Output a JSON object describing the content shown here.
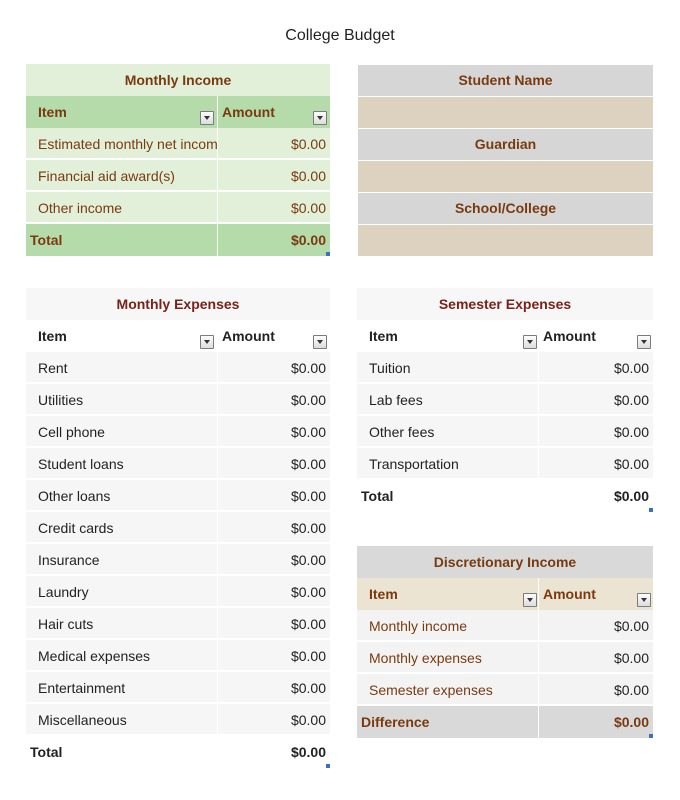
{
  "title": "College Budget",
  "monthly_income": {
    "caption": "Monthly Income",
    "col_item": "Item",
    "col_amount": "Amount",
    "rows": [
      {
        "item": "Estimated monthly net income",
        "amount": "$0.00"
      },
      {
        "item": "Financial aid award(s)",
        "amount": "$0.00"
      },
      {
        "item": "Other income",
        "amount": "$0.00"
      }
    ],
    "total_label": "Total",
    "total_amount": "$0.00"
  },
  "student_info": {
    "student_name_label": "Student Name",
    "student_name_value": "",
    "guardian_label": "Guardian",
    "guardian_value": "",
    "school_label": "School/College",
    "school_value": ""
  },
  "monthly_expenses": {
    "caption": "Monthly Expenses",
    "col_item": "Item",
    "col_amount": "Amount",
    "rows": [
      {
        "item": "Rent",
        "amount": "$0.00"
      },
      {
        "item": "Utilities",
        "amount": "$0.00"
      },
      {
        "item": "Cell phone",
        "amount": "$0.00"
      },
      {
        "item": "Student loans",
        "amount": "$0.00"
      },
      {
        "item": "Other loans",
        "amount": "$0.00"
      },
      {
        "item": "Credit cards",
        "amount": "$0.00"
      },
      {
        "item": "Insurance",
        "amount": "$0.00"
      },
      {
        "item": "Laundry",
        "amount": "$0.00"
      },
      {
        "item": "Hair cuts",
        "amount": "$0.00"
      },
      {
        "item": "Medical expenses",
        "amount": "$0.00"
      },
      {
        "item": "Entertainment",
        "amount": "$0.00"
      },
      {
        "item": "Miscellaneous",
        "amount": "$0.00"
      }
    ],
    "total_label": "Total",
    "total_amount": "$0.00"
  },
  "semester_expenses": {
    "caption": "Semester Expenses",
    "col_item": "Item",
    "col_amount": "Amount",
    "rows": [
      {
        "item": "Tuition",
        "amount": "$0.00"
      },
      {
        "item": "Lab fees",
        "amount": "$0.00"
      },
      {
        "item": "Other fees",
        "amount": "$0.00"
      },
      {
        "item": "Transportation",
        "amount": "$0.00"
      }
    ],
    "total_label": "Total",
    "total_amount": "$0.00"
  },
  "discretionary_income": {
    "caption": "Discretionary Income",
    "col_item": "Item",
    "col_amount": "Amount",
    "rows": [
      {
        "item": "Monthly income",
        "amount": "$0.00"
      },
      {
        "item": "Monthly expenses",
        "amount": "$0.00"
      },
      {
        "item": "Semester expenses",
        "amount": "$0.00"
      }
    ],
    "total_label": "Difference",
    "total_amount": "$0.00"
  }
}
